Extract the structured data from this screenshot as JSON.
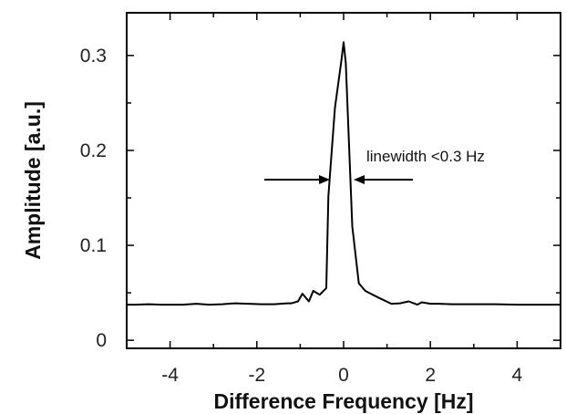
{
  "chart_data": {
    "type": "line",
    "xlabel": "Difference Frequency [Hz]",
    "ylabel": "Amplitude [a.u.]",
    "xlim": [
      -5,
      5
    ],
    "ylim": [
      -0.0085,
      0.345
    ],
    "x_ticks": [
      -4,
      -2,
      0,
      2,
      4
    ],
    "y_ticks": [
      0,
      0.1,
      0.2,
      0.3
    ],
    "x_tick_labels": [
      "-4",
      "-2",
      "0",
      "2",
      "4"
    ],
    "y_tick_labels": [
      "0",
      "0.1",
      "0.2",
      "0.3"
    ],
    "grid": false,
    "annotations": [
      {
        "text": "linewidth <0.3 Hz",
        "x": 0.5,
        "y": 0.224
      }
    ],
    "series": [
      {
        "x": [
          -5,
          -4.8,
          -4.5,
          -4.2,
          -4.0,
          -3.7,
          -3.4,
          -3.1,
          -2.8,
          -2.5,
          -2.2,
          -1.9,
          -1.6,
          -1.3,
          -1.2,
          -1.05,
          -0.95,
          -0.8,
          -0.7,
          -0.55,
          -0.4,
          -0.35,
          -0.2,
          -0.05,
          0.0,
          0.05,
          0.2,
          0.35,
          0.5,
          0.8,
          1.1,
          1.3,
          1.5,
          1.7,
          1.8,
          2.0,
          2.2,
          2.5,
          3.0,
          3.5,
          4.0,
          4.5,
          5.0
        ],
        "y": [
          0.0375,
          0.0375,
          0.038,
          0.0375,
          0.0375,
          0.0375,
          0.0385,
          0.0375,
          0.038,
          0.039,
          0.0385,
          0.038,
          0.038,
          0.039,
          0.039,
          0.041,
          0.049,
          0.041,
          0.052,
          0.048,
          0.055,
          0.152,
          0.245,
          0.295,
          0.314,
          0.292,
          0.12,
          0.06,
          0.052,
          0.045,
          0.0385,
          0.039,
          0.041,
          0.0375,
          0.04,
          0.0385,
          0.0385,
          0.038,
          0.038,
          0.038,
          0.0375,
          0.0375,
          0.0375
        ]
      }
    ]
  }
}
